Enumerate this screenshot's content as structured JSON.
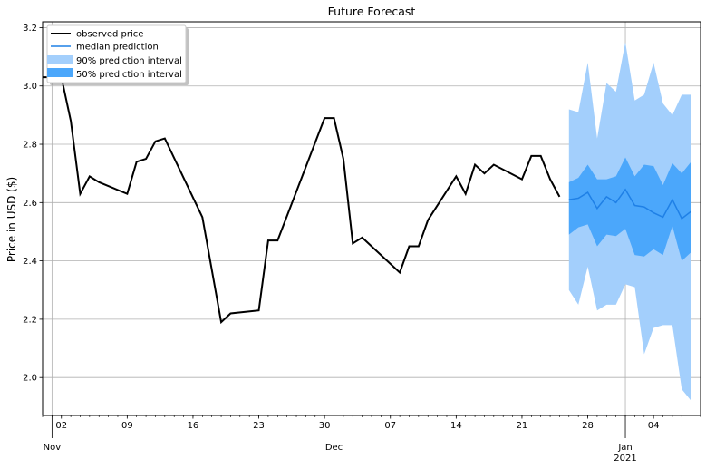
{
  "chart_data": {
    "type": "line",
    "title": "Future Forecast",
    "xlabel": "",
    "ylabel": "Price in USD ($)",
    "ylim": [
      1.87,
      3.22
    ],
    "xlim": [
      "2020-10-31",
      "2021-01-05"
    ],
    "grid": true,
    "legend_position": "top-left",
    "yticks": [
      "2.0",
      "2.2",
      "2.4",
      "2.6",
      "2.8",
      "3.0",
      "3.2"
    ],
    "xticks_minor": [
      {
        "date": "2020-11-02",
        "label": "02"
      },
      {
        "date": "2020-11-09",
        "label": "09"
      },
      {
        "date": "2020-11-16",
        "label": "16"
      },
      {
        "date": "2020-11-23",
        "label": "23"
      },
      {
        "date": "2020-11-30",
        "label": "30"
      },
      {
        "date": "2020-12-07",
        "label": "07"
      },
      {
        "date": "2020-12-14",
        "label": "14"
      },
      {
        "date": "2020-12-21",
        "label": "21"
      },
      {
        "date": "2020-12-28",
        "label": "28"
      },
      {
        "date": "2021-01-04",
        "label": "04"
      }
    ],
    "xticks_major": [
      {
        "date": "2020-11-01",
        "label": "Nov",
        "sublabel": ""
      },
      {
        "date": "2020-12-01",
        "label": "Dec",
        "sublabel": ""
      },
      {
        "date": "2021-01-01",
        "label": "Jan",
        "sublabel": "2021"
      }
    ],
    "legend": [
      "observed price",
      "median prediction",
      "90% prediction interval",
      "50% prediction interval"
    ],
    "colors": {
      "observed": "#000000",
      "median": "#1f80e6",
      "band90": "#a3cffc",
      "band50": "#4ba7fb",
      "grid": "#b0b0b0"
    },
    "observed_price": {
      "x": [
        "2020-11-02",
        "2020-11-03",
        "2020-11-04",
        "2020-11-05",
        "2020-11-06",
        "2020-11-09",
        "2020-11-10",
        "2020-11-11",
        "2020-11-12",
        "2020-11-13",
        "2020-11-17",
        "2020-11-19",
        "2020-11-20",
        "2020-11-23",
        "2020-11-24",
        "2020-11-25",
        "2020-11-30",
        "2020-12-01",
        "2020-12-02",
        "2020-12-03",
        "2020-12-04",
        "2020-12-08",
        "2020-12-09",
        "2020-12-10",
        "2020-12-11",
        "2020-12-14",
        "2020-12-15",
        "2020-12-16",
        "2020-12-17",
        "2020-12-18",
        "2020-12-21",
        "2020-12-22",
        "2020-12-23",
        "2020-12-24",
        "2020-12-25"
      ],
      "y": [
        3.03,
        2.88,
        2.63,
        2.69,
        2.67,
        2.63,
        2.74,
        2.75,
        2.81,
        2.82,
        2.55,
        2.19,
        2.22,
        2.23,
        2.47,
        2.47,
        2.89,
        2.89,
        2.75,
        2.46,
        2.48,
        2.36,
        2.45,
        2.45,
        2.54,
        2.69,
        2.63,
        2.73,
        2.7,
        2.73,
        2.68,
        2.76,
        2.76,
        2.68,
        2.62
      ]
    },
    "forecast": {
      "x": [
        "2020-12-26",
        "2020-12-27",
        "2020-12-28",
        "2020-12-29",
        "2020-12-30",
        "2020-12-31",
        "2021-01-01",
        "2021-01-02",
        "2021-01-03",
        "2021-01-04",
        "2021-01-05",
        "2021-01-06",
        "2021-01-07",
        "2021-01-08"
      ],
      "median": [
        2.61,
        2.615,
        2.635,
        2.58,
        2.62,
        2.6,
        2.645,
        2.59,
        2.585,
        2.565,
        2.55,
        2.61,
        2.545,
        2.57
      ],
      "p25": [
        2.49,
        2.515,
        2.525,
        2.45,
        2.49,
        2.485,
        2.51,
        2.42,
        2.415,
        2.44,
        2.42,
        2.52,
        2.4,
        2.43
      ],
      "p75": [
        2.67,
        2.685,
        2.73,
        2.68,
        2.68,
        2.69,
        2.755,
        2.69,
        2.73,
        2.725,
        2.66,
        2.735,
        2.7,
        2.74
      ],
      "p05": [
        2.3,
        2.25,
        2.38,
        2.23,
        2.25,
        2.25,
        2.32,
        2.31,
        2.08,
        2.17,
        2.18,
        2.18,
        1.96,
        1.92
      ],
      "p95": [
        2.92,
        2.91,
        3.08,
        2.82,
        3.01,
        2.98,
        3.15,
        2.95,
        2.97,
        3.08,
        2.94,
        2.9,
        2.97,
        2.97
      ]
    }
  }
}
